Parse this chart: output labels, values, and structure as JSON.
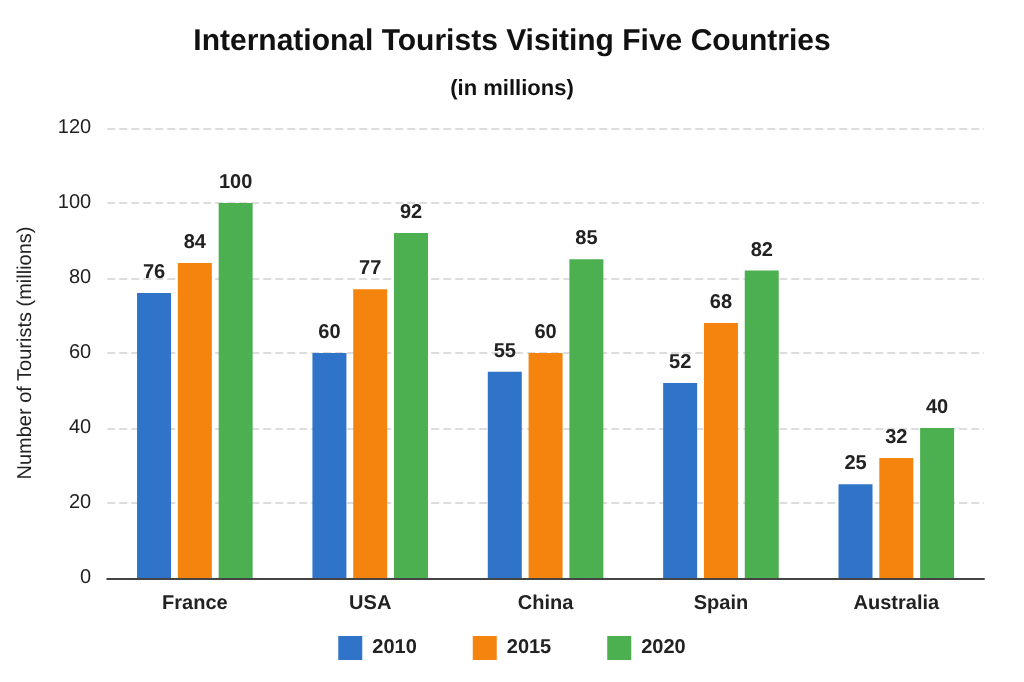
{
  "chart_data": {
    "type": "bar",
    "title": "International Tourists Visiting Five Countries",
    "subtitle": "(in millions)",
    "ylabel": "Number of Tourists (millions)",
    "categories": [
      "France",
      "USA",
      "China",
      "Spain",
      "Australia"
    ],
    "series": [
      {
        "name": "2010",
        "color": "#2f74c8",
        "values": [
          76,
          60,
          55,
          52,
          25
        ]
      },
      {
        "name": "2015",
        "color": "#f5840f",
        "values": [
          84,
          77,
          60,
          68,
          32
        ]
      },
      {
        "name": "2020",
        "color": "#4caf50",
        "values": [
          100,
          92,
          85,
          82,
          40
        ]
      }
    ],
    "ylim": [
      0,
      120
    ],
    "yticks": [
      0,
      20,
      40,
      60,
      80,
      100,
      120
    ],
    "grid": "y",
    "legend": "bottom",
    "data_labels": true
  }
}
